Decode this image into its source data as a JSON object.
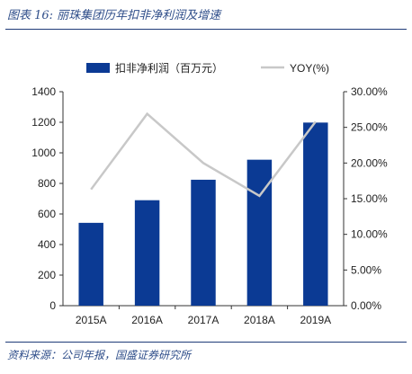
{
  "figure_title": "图表 16:  丽珠集团历年扣非净利润及增速",
  "source_note": "资料来源：公司年报，国盛证券研究所",
  "colors": {
    "bar": "#0b3a94",
    "line": "#c8c8c8",
    "axis": "#333333",
    "text": "#222222",
    "title": "#2f4e8a"
  },
  "chart_data": {
    "type": "bar",
    "categories": [
      "2015A",
      "2016A",
      "2017A",
      "2018A",
      "2019A"
    ],
    "series": [
      {
        "name": "扣非净利润（百万元）",
        "type": "bar",
        "axis": "left",
        "values": [
          542,
          690,
          824,
          955,
          1198
        ]
      },
      {
        "name": "YOY(%)",
        "type": "line",
        "axis": "right",
        "values": [
          16.3,
          26.9,
          20.0,
          15.4,
          25.8
        ]
      }
    ],
    "left_axis": {
      "ylim": [
        0,
        1400
      ],
      "ticks": [
        "0",
        "200",
        "400",
        "600",
        "800",
        "1000",
        "1200",
        "1400"
      ]
    },
    "right_axis": {
      "ylim": [
        0,
        30
      ],
      "ticks": [
        "0.00%",
        "5.00%",
        "10.00%",
        "15.00%",
        "20.00%",
        "25.00%",
        "30.00%"
      ]
    },
    "legend_position": "top",
    "grid": false
  }
}
